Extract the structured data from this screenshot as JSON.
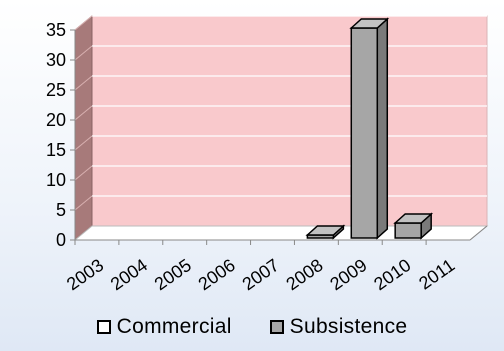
{
  "chart_data": {
    "type": "bar",
    "categories": [
      "2003",
      "2004",
      "2005",
      "2006",
      "2007",
      "2008",
      "2009",
      "2010",
      "2011"
    ],
    "series": [
      {
        "name": "Commercial",
        "values": [
          0,
          0,
          0,
          0,
          0,
          0,
          0,
          0,
          0
        ],
        "color": "#ffffff"
      },
      {
        "name": "Subsistence",
        "values": [
          0,
          0,
          0,
          0,
          0,
          0.5,
          35,
          2.5,
          0
        ],
        "color": "#a6a6a6"
      }
    ],
    "ylim": [
      0,
      35
    ],
    "yticks": [
      "0",
      "5",
      "10",
      "15",
      "20",
      "25",
      "30",
      "35"
    ],
    "grid": true,
    "legend_position": "bottom",
    "plot_background": "#f9c9cc",
    "side_wall_color": "#a77a7a"
  }
}
